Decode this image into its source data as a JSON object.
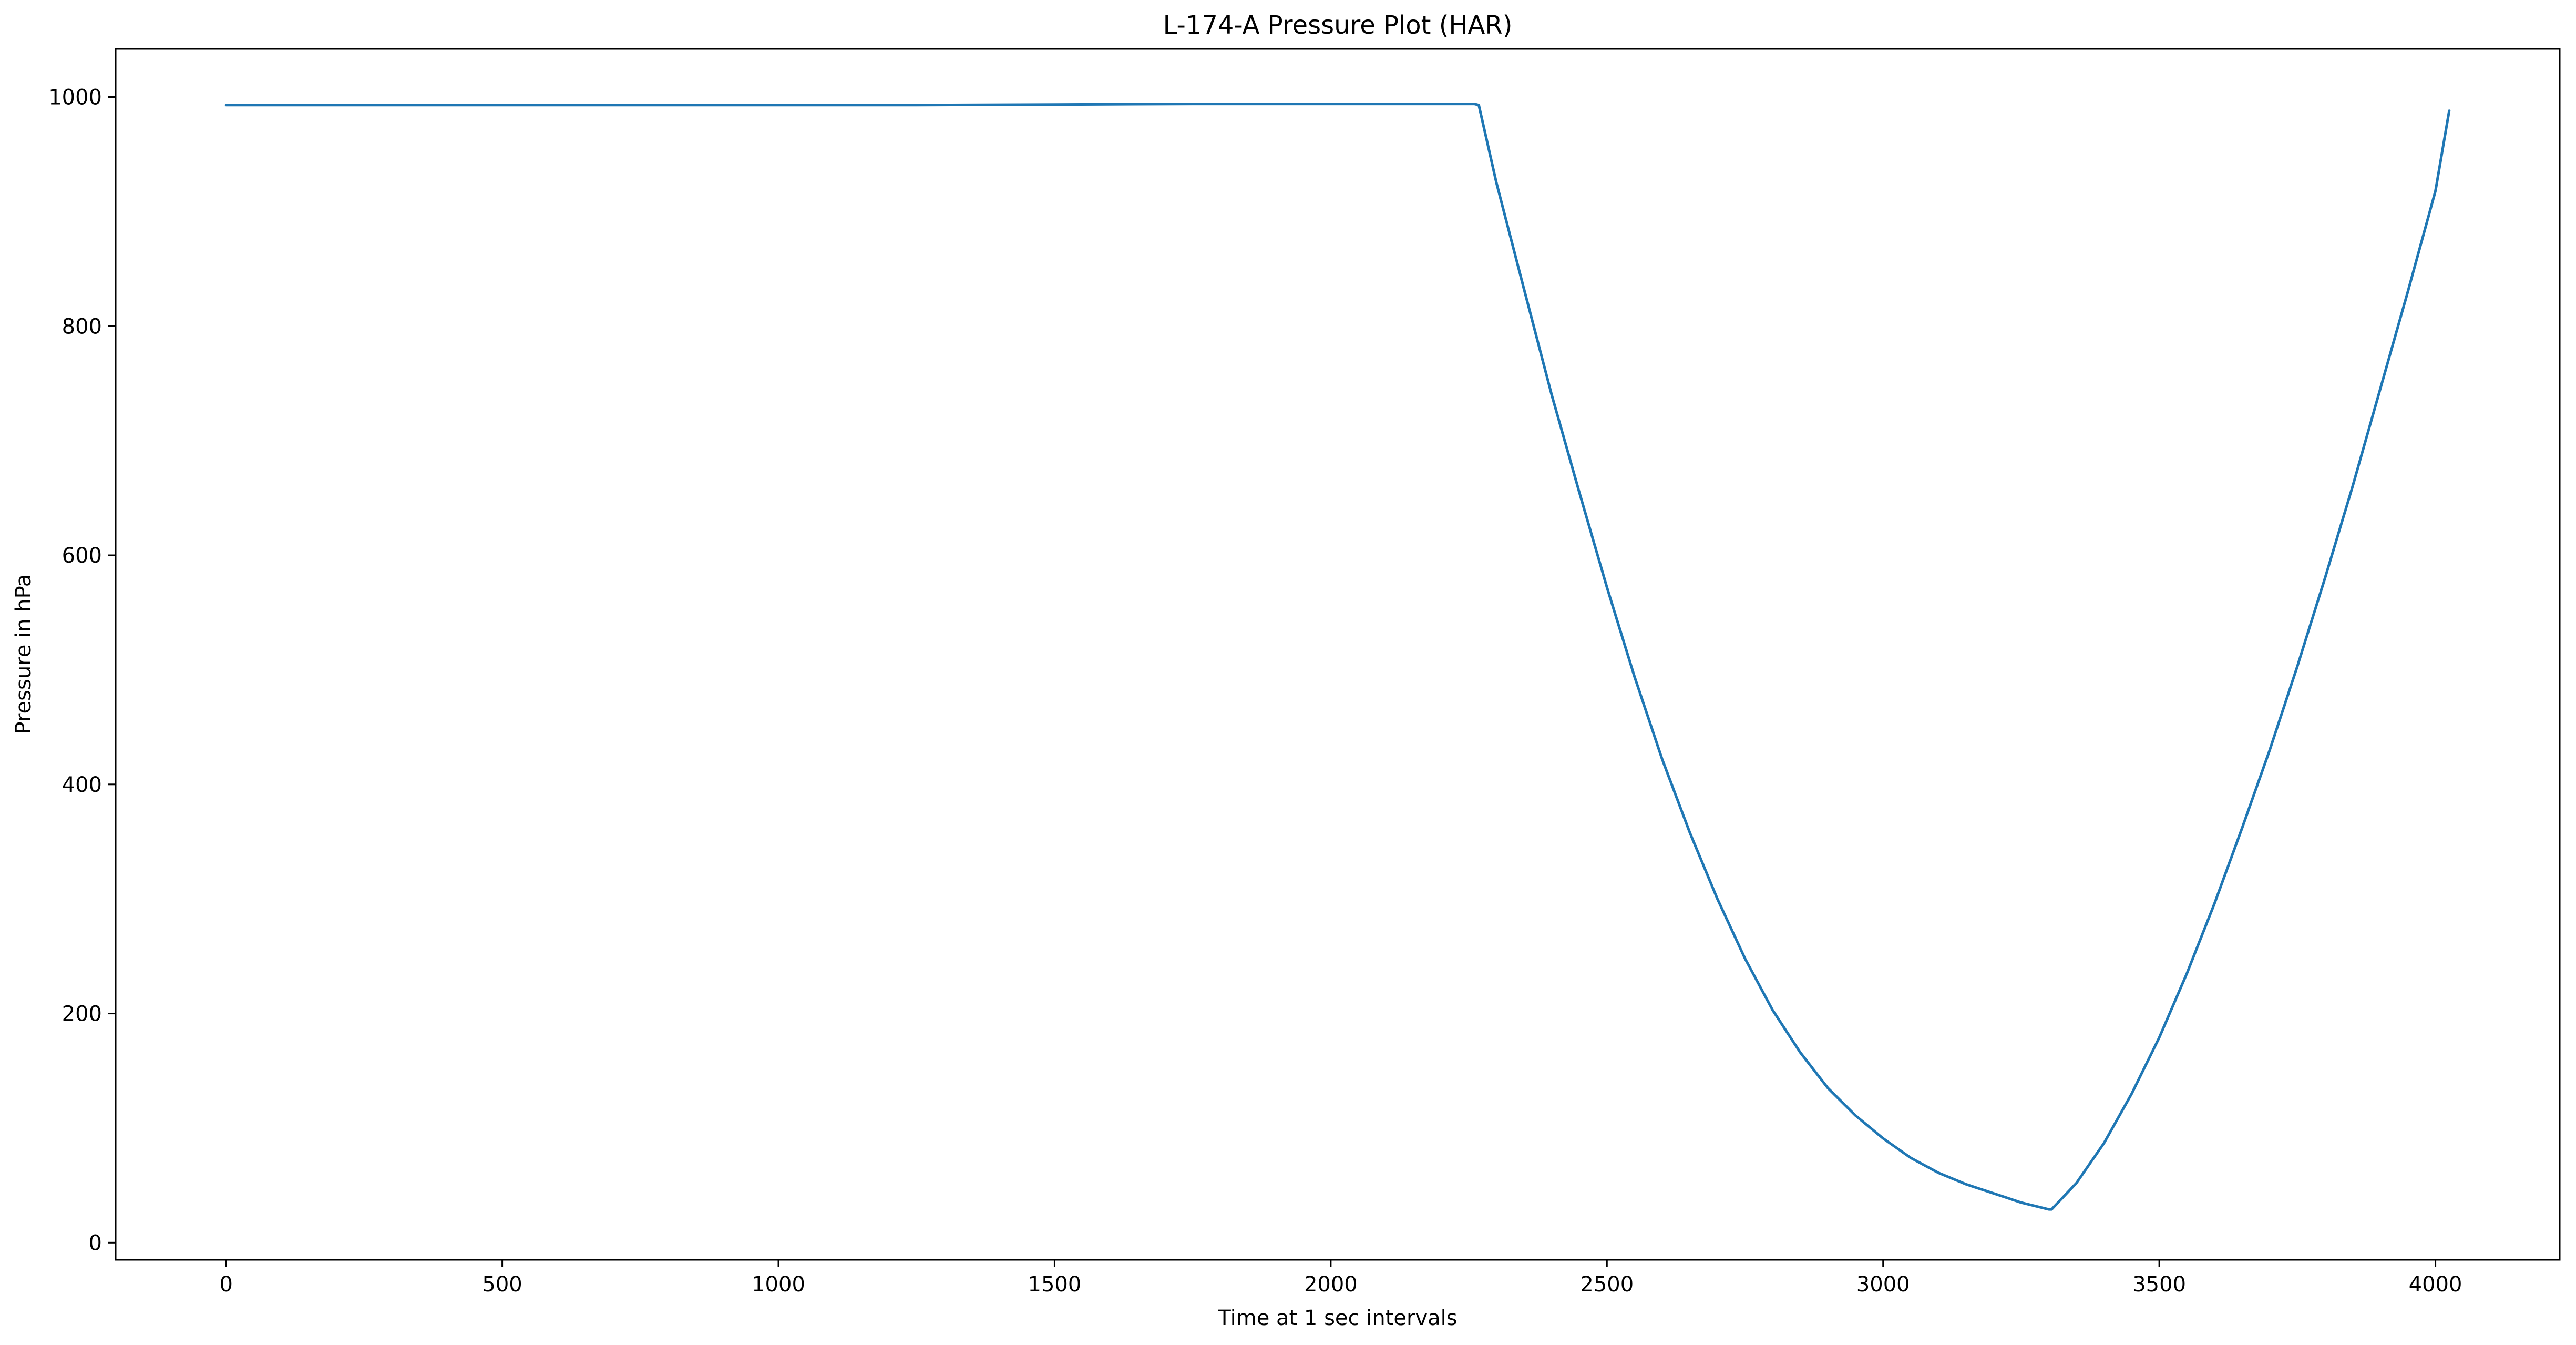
{
  "chart_data": {
    "type": "line",
    "title": "L-174-A Pressure Plot (HAR)",
    "xlabel": "Time at 1 sec intervals",
    "ylabel": "Pressure in hPa",
    "xlim": [
      -200,
      4225
    ],
    "ylim": [
      -15,
      1042
    ],
    "xticks": [
      0,
      500,
      1000,
      1500,
      2000,
      2500,
      3000,
      3500,
      4000
    ],
    "yticks": [
      0,
      200,
      400,
      600,
      800,
      1000
    ],
    "xtick_labels": [
      "0",
      "500",
      "1000",
      "1500",
      "2000",
      "2500",
      "3000",
      "3500",
      "4000"
    ],
    "ytick_labels": [
      "0",
      "200",
      "400",
      "600",
      "800",
      "1000"
    ],
    "grid": false,
    "series": [
      {
        "color": "#1f77b4",
        "x": [
          0,
          250,
          500,
          750,
          1000,
          1250,
          1500,
          1750,
          2000,
          2150,
          2260,
          2268,
          2300,
          2350,
          2400,
          2450,
          2500,
          2550,
          2600,
          2650,
          2700,
          2750,
          2800,
          2850,
          2900,
          2950,
          3000,
          3050,
          3100,
          3150,
          3200,
          3250,
          3300,
          3305,
          3350,
          3400,
          3450,
          3500,
          3550,
          3600,
          3650,
          3700,
          3750,
          3800,
          3850,
          3900,
          3950,
          4000,
          4025
        ],
        "y": [
          993,
          993,
          993,
          993,
          993,
          993,
          993.5,
          994,
          994,
          994,
          994,
          993,
          925,
          832,
          740,
          655,
          572,
          494,
          422,
          358,
          300,
          248,
          203,
          166,
          135,
          111,
          91,
          74,
          61,
          51,
          43,
          35,
          29,
          29,
          52,
          87,
          130,
          179,
          235,
          296,
          362,
          430,
          503,
          580,
          660,
          745,
          830,
          918,
          988
        ]
      }
    ]
  }
}
